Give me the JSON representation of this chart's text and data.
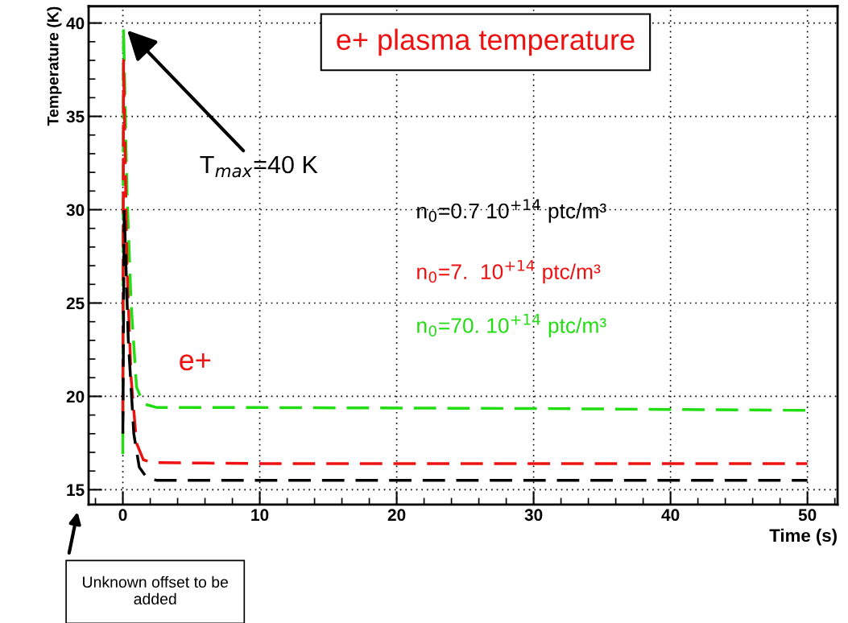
{
  "chart_data": {
    "type": "line",
    "title": "e+ plasma temperature",
    "xlabel": "Time (s)",
    "ylabel": "Temperature (K)",
    "series": [
      {
        "name": "n$_{0}$=0.7 10$^{+14}$ ptc/m³",
        "color": "#000000",
        "x": [
          0,
          0.1,
          0.4,
          0.8,
          1.2,
          1.8,
          2.5,
          10,
          30,
          50
        ],
        "values": [
          18,
          30,
          23,
          18,
          16.2,
          15.6,
          15.5,
          15.5,
          15.5,
          15.5
        ]
      },
      {
        "name": "n$_{0}$=7.  10$^{+14}$ ptc/m³",
        "color": "#ee1111",
        "x": [
          0,
          0.05,
          0.3,
          0.6,
          1.0,
          1.5,
          2.2,
          10,
          30,
          50
        ],
        "values": [
          19,
          38,
          27,
          21,
          17.5,
          16.6,
          16.45,
          16.4,
          16.4,
          16.4
        ]
      },
      {
        "name": "n$_{0}$=70. 10$^{+14}$ ptc/m³",
        "color": "#22dd11",
        "x": [
          0,
          0.05,
          0.3,
          0.6,
          1.0,
          1.5,
          2.5,
          10,
          30,
          50
        ],
        "values": [
          16.9,
          39.7,
          31,
          25,
          20.5,
          19.6,
          19.4,
          19.4,
          19.35,
          19.25
        ]
      }
    ],
    "annotations": [
      {
        "text": "T$_{max}$=40 K",
        "x": 0.2,
        "y": 39.7
      },
      "e+",
      "Unknown offset to be added"
    ],
    "xlim": [
      -2.5,
      52.2
    ],
    "ylim": [
      14.2,
      40.9
    ],
    "xticks": [
      0,
      10,
      20,
      30,
      40,
      50
    ],
    "yticks": [
      15,
      20,
      25,
      30,
      35,
      40
    ],
    "grid": true,
    "line_style": "dashed",
    "marker": "none"
  }
}
